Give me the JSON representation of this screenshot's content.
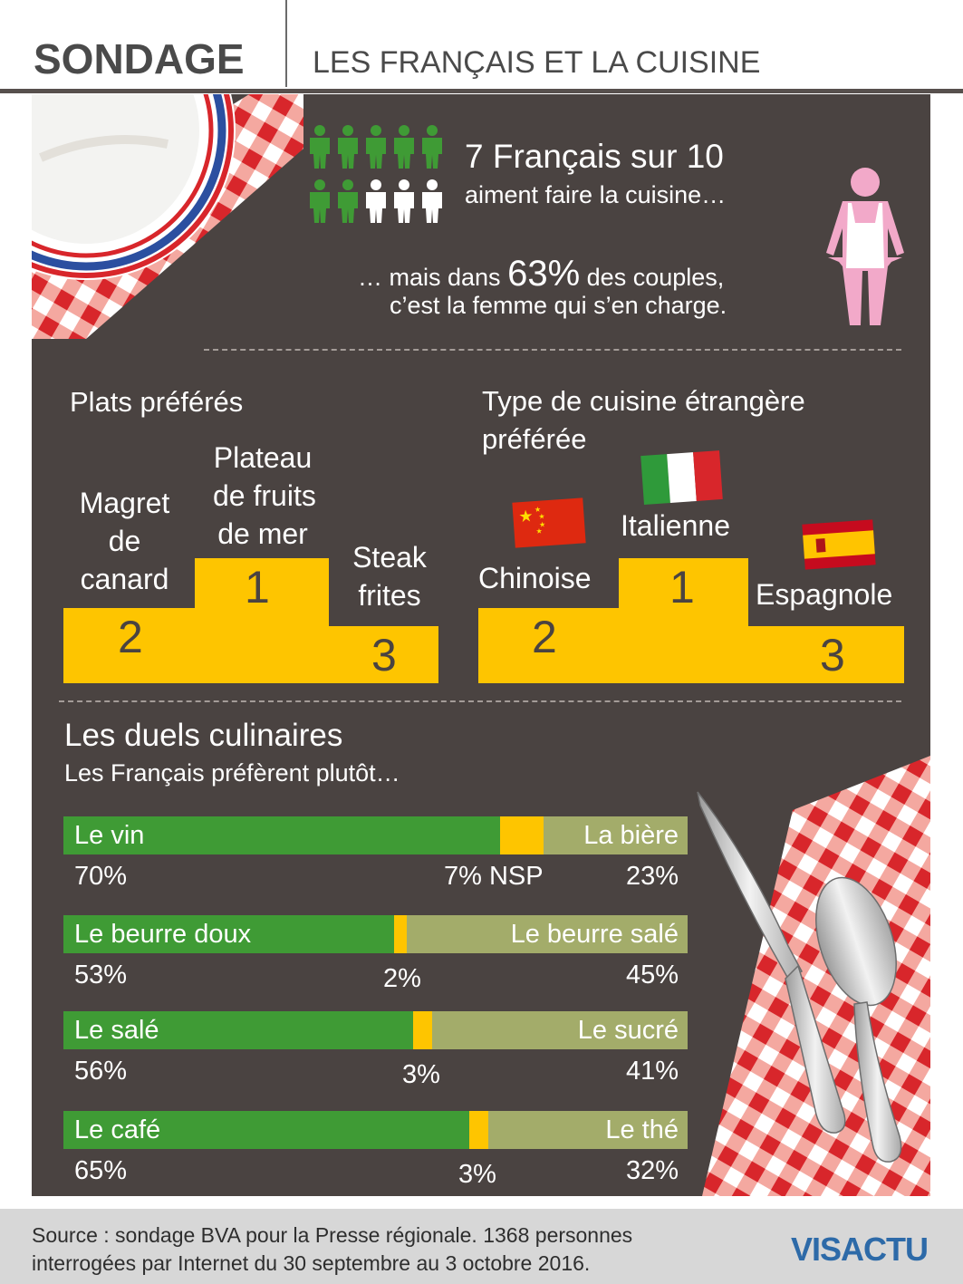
{
  "header": {
    "kicker": "SONDAGE",
    "title": "LES FRANÇAIS ET LA CUISINE"
  },
  "intro": {
    "stat": "7 Français sur 10",
    "stat_sub": "aiment faire la cuisine…",
    "couples_pre": "… mais dans",
    "couples_pct": "63%",
    "couples_post": "des couples,",
    "couples_line2": "c’est la femme qui s’en charge."
  },
  "dishes": {
    "title": "Plats préférés",
    "first": {
      "label_lines": [
        "Plateau",
        "de fruits",
        "de mer"
      ],
      "rank": "1"
    },
    "second": {
      "label_lines": [
        "Magret",
        "de",
        "canard"
      ],
      "rank": "2"
    },
    "third": {
      "label_lines": [
        "Steak",
        "frites"
      ],
      "rank": "3"
    }
  },
  "foreign": {
    "title_lines": [
      "Type de cuisine étrangère",
      "préférée"
    ],
    "first": {
      "label": "Italienne",
      "rank": "1"
    },
    "second": {
      "label": "Chinoise",
      "rank": "2"
    },
    "third": {
      "label": "Espagnole",
      "rank": "3"
    }
  },
  "duels": {
    "title": "Les duels culinaires",
    "subtitle": "Les Français préfèrent plutôt…",
    "items": [
      {
        "left": "Le vin",
        "right": "La bière",
        "left_pct": "70%",
        "mid_pct": "7% NSP",
        "right_pct": "23%",
        "left_value": 70,
        "mid_value": 7,
        "right_value": 23
      },
      {
        "left": "Le beurre doux",
        "right": "Le beurre salé",
        "left_pct": "53%",
        "mid_pct": "2%",
        "right_pct": "45%",
        "left_value": 53,
        "mid_value": 2,
        "right_value": 45
      },
      {
        "left": "Le salé",
        "right": "Le sucré",
        "left_pct": "56%",
        "mid_pct": "3%",
        "right_pct": "41%",
        "left_value": 56,
        "mid_value": 3,
        "right_value": 41
      },
      {
        "left": "Le café",
        "right": "Le thé",
        "left_pct": "65%",
        "mid_pct": "3%",
        "right_pct": "32%",
        "left_value": 65,
        "mid_value": 3,
        "right_value": 32
      }
    ]
  },
  "footer": {
    "source_line1": "Source : sondage BVA pour la Presse régionale. 1368 personnes",
    "source_line2": "interrogées par Internet du 30 septembre au 3 octobre 2016.",
    "logo": "VISACTU"
  },
  "colors": {
    "panel": "#4a4341",
    "green": "#3f9b35",
    "olive": "#a3ac6a",
    "yellow": "#fec500",
    "pink": "#f2a9c9",
    "check_red": "#e53a3a"
  }
}
